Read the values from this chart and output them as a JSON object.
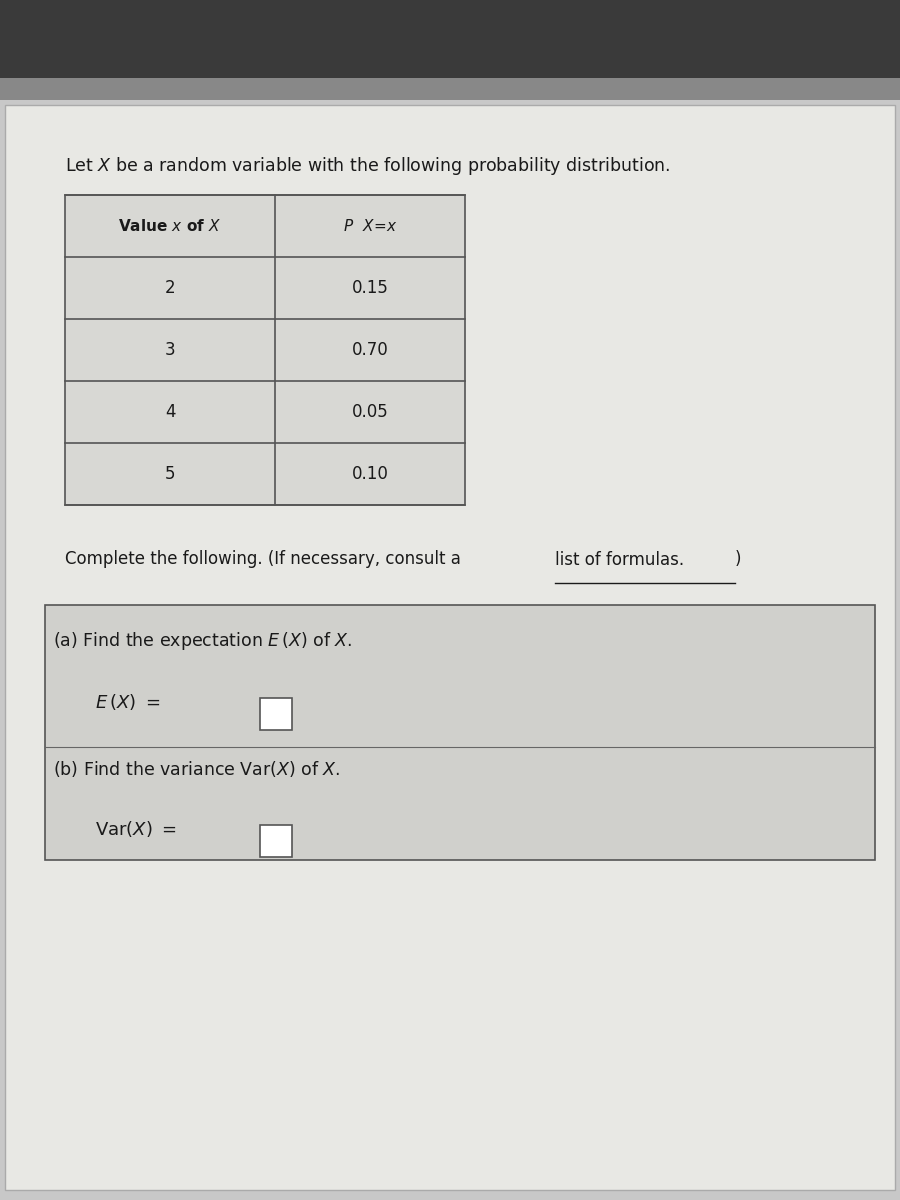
{
  "title_text": "Let $\\mathit{X}$ be a random variable with the following probability distribution.",
  "table_col1_header": "Value $x$ of $X$",
  "table_col2_header": "$P\\ X\\!=\\!x$",
  "table_values": [
    2,
    3,
    4,
    5
  ],
  "table_probs": [
    "0.15",
    "0.70",
    "0.05",
    "0.10"
  ],
  "complete_text": "Complete the following. (If necessary, consult a ",
  "link_text": "list of formulas.",
  "complete_end": ")",
  "part_a_label": "(a) Find the expectation $E\\,(X)$ of $X$.",
  "part_a_answer": "$E\\,(X) = \\square$",
  "part_b_label": "(b) Find the variance Var$(X)$ of $X$.",
  "part_b_answer": "Var$(X) = \\square$",
  "bg_top_color": "#4a4a4a",
  "bg_main_color": "#c8c8c8",
  "paper_color": "#e8e8e4",
  "table_bg": "#d8d8d4",
  "table_header_bg": "#c0c0bc",
  "line_color": "#888888",
  "text_color": "#1a1a1a",
  "answer_box_color": "#d0d0cc"
}
